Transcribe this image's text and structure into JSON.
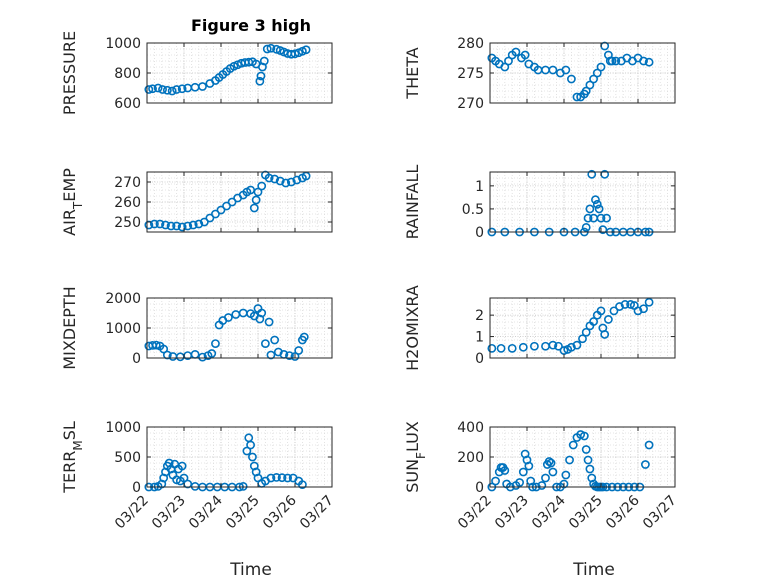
{
  "figure": {
    "title": "Figure 3 high",
    "x_tick_labels": [
      "03/22",
      "03/23",
      "03/24",
      "03/25",
      "03/26",
      "03/27"
    ],
    "xlabel": "Time"
  },
  "colors": {
    "marker": "#0072BD",
    "axes": "#262626",
    "grid": "#dcdcdc",
    "background": "#ffffff"
  },
  "chart_data": [
    {
      "type": "scatter",
      "ylabel": "PRESSURE",
      "title": "Figure 3 high",
      "ylim": [
        600,
        1000
      ],
      "yticks": [
        600,
        800,
        1000
      ],
      "xlim": [
        0,
        5
      ],
      "grid": "on",
      "marker": "open-circle",
      "x": [
        0.05,
        0.15,
        0.3,
        0.42,
        0.55,
        0.68,
        0.8,
        0.95,
        1.1,
        1.3,
        1.5,
        1.7,
        1.85,
        1.95,
        2.05,
        2.15,
        2.25,
        2.35,
        2.45,
        2.55,
        2.65,
        2.75,
        2.85,
        2.95,
        3.05,
        3.08,
        3.12,
        3.17,
        3.25,
        3.35,
        3.5,
        3.6,
        3.7,
        3.8,
        3.9,
        4.0,
        4.1,
        4.2,
        4.3
      ],
      "y": [
        690,
        695,
        700,
        690,
        685,
        680,
        690,
        695,
        700,
        705,
        710,
        730,
        750,
        770,
        790,
        810,
        830,
        845,
        855,
        865,
        870,
        872,
        875,
        860,
        745,
        780,
        840,
        880,
        960,
        965,
        958,
        950,
        940,
        930,
        925,
        928,
        935,
        945,
        955
      ]
    },
    {
      "type": "scatter",
      "ylabel": "THETA",
      "ylim": [
        270,
        280
      ],
      "yticks": [
        270,
        275,
        280
      ],
      "xlim": [
        0,
        5
      ],
      "grid": "on",
      "marker": "open-circle",
      "x": [
        0.05,
        0.15,
        0.25,
        0.4,
        0.5,
        0.6,
        0.7,
        0.85,
        0.95,
        1.05,
        1.2,
        1.3,
        1.5,
        1.7,
        1.9,
        2.05,
        2.2,
        2.35,
        2.45,
        2.55,
        2.6,
        2.7,
        2.8,
        2.9,
        3.0,
        3.1,
        3.2,
        3.25,
        3.3,
        3.4,
        3.55,
        3.7,
        3.85,
        4.0,
        4.15,
        4.3
      ],
      "y": [
        277.5,
        277,
        276.5,
        276,
        277,
        278,
        278.5,
        277.5,
        278,
        276.5,
        276,
        275.5,
        275.5,
        275.5,
        275,
        275.5,
        274,
        271,
        271,
        271.5,
        272,
        273,
        274,
        275,
        276,
        279.5,
        278,
        277,
        277,
        277,
        277,
        277.5,
        277,
        277.5,
        277,
        276.8
      ]
    },
    {
      "type": "scatter",
      "ylabel": "AIR_TEMP",
      "ylim": [
        245,
        275
      ],
      "yticks": [
        250,
        260,
        270
      ],
      "xlim": [
        0,
        5
      ],
      "grid": "on",
      "marker": "open-circle",
      "x": [
        0.05,
        0.2,
        0.35,
        0.5,
        0.65,
        0.8,
        0.95,
        1.1,
        1.25,
        1.4,
        1.55,
        1.7,
        1.85,
        2.0,
        2.15,
        2.3,
        2.45,
        2.6,
        2.7,
        2.8,
        2.9,
        2.95,
        3.0,
        3.1,
        3.2,
        3.3,
        3.45,
        3.6,
        3.75,
        3.9,
        4.05,
        4.2,
        4.3
      ],
      "y": [
        248.5,
        249,
        249,
        248.5,
        248,
        248,
        247.5,
        248,
        248.5,
        249,
        250,
        252,
        254,
        256,
        258,
        260,
        262,
        263.5,
        265,
        266,
        257,
        261,
        265,
        268,
        273.5,
        272,
        271.5,
        270.5,
        269.5,
        270,
        271,
        272,
        273
      ]
    },
    {
      "type": "scatter",
      "ylabel": "RAINFALL",
      "ylim": [
        0,
        1.3
      ],
      "yticks": [
        0,
        0.5,
        1
      ],
      "xlim": [
        0,
        5
      ],
      "grid": "on",
      "marker": "open-circle",
      "x": [
        0.05,
        0.4,
        0.8,
        1.2,
        1.6,
        2.0,
        2.3,
        2.55,
        2.6,
        2.65,
        2.7,
        2.75,
        2.8,
        2.85,
        2.9,
        2.95,
        3.0,
        3.05,
        3.1,
        3.15,
        3.25,
        3.4,
        3.6,
        3.8,
        4.0,
        4.2,
        4.3
      ],
      "y": [
        0,
        0,
        0,
        0,
        0,
        0,
        0,
        0,
        0.1,
        0.3,
        0.5,
        1.25,
        0.3,
        0.7,
        0.6,
        0.5,
        0.3,
        0.05,
        1.25,
        0.3,
        0,
        0,
        0,
        0,
        0,
        0,
        0
      ]
    },
    {
      "type": "scatter",
      "ylabel": "MIXDEPTH",
      "ylim": [
        0,
        2000
      ],
      "yticks": [
        0,
        1000,
        2000
      ],
      "xlim": [
        0,
        5
      ],
      "grid": "on",
      "marker": "open-circle",
      "x": [
        0.05,
        0.15,
        0.25,
        0.35,
        0.45,
        0.55,
        0.7,
        0.9,
        1.1,
        1.3,
        1.5,
        1.65,
        1.75,
        1.85,
        1.95,
        2.05,
        2.2,
        2.4,
        2.6,
        2.8,
        2.9,
        3.0,
        3.05,
        3.1,
        3.2,
        3.3,
        3.35,
        3.45,
        3.55,
        3.7,
        3.85,
        4.0,
        4.1,
        4.2,
        4.25
      ],
      "y": [
        400,
        420,
        430,
        400,
        300,
        100,
        50,
        40,
        80,
        120,
        30,
        80,
        150,
        480,
        1100,
        1250,
        1350,
        1450,
        1500,
        1480,
        1400,
        1650,
        1300,
        1500,
        480,
        1200,
        100,
        600,
        200,
        120,
        80,
        50,
        250,
        600,
        700
      ]
    },
    {
      "type": "scatter",
      "ylabel": "H2OMIXRA",
      "ylim": [
        0,
        2.8
      ],
      "yticks": [
        0,
        1,
        2
      ],
      "xlim": [
        0,
        5
      ],
      "grid": "on",
      "marker": "open-circle",
      "x": [
        0.05,
        0.3,
        0.6,
        0.9,
        1.2,
        1.5,
        1.7,
        1.85,
        2.0,
        2.1,
        2.2,
        2.35,
        2.5,
        2.6,
        2.7,
        2.8,
        2.9,
        3.0,
        3.05,
        3.1,
        3.2,
        3.35,
        3.5,
        3.65,
        3.8,
        3.9,
        4.0,
        4.15,
        4.3
      ],
      "y": [
        0.45,
        0.45,
        0.45,
        0.5,
        0.55,
        0.55,
        0.6,
        0.55,
        0.35,
        0.4,
        0.5,
        0.6,
        0.9,
        1.2,
        1.5,
        1.7,
        2.0,
        2.2,
        1.4,
        1.1,
        1.8,
        2.2,
        2.4,
        2.5,
        2.5,
        2.45,
        2.2,
        2.3,
        2.6
      ]
    },
    {
      "type": "scatter",
      "ylabel": "TERR_MSL",
      "ylim": [
        0,
        1000
      ],
      "yticks": [
        0,
        500,
        1000
      ],
      "xlim": [
        0,
        5
      ],
      "grid": "on",
      "marker": "open-circle",
      "x": [
        0.05,
        0.2,
        0.3,
        0.4,
        0.45,
        0.5,
        0.55,
        0.6,
        0.65,
        0.7,
        0.75,
        0.8,
        0.85,
        0.9,
        0.95,
        1.0,
        1.1,
        1.3,
        1.5,
        1.7,
        1.9,
        2.1,
        2.3,
        2.5,
        2.6,
        2.7,
        2.75,
        2.8,
        2.85,
        2.9,
        2.95,
        3.0,
        3.1,
        3.2,
        3.35,
        3.5,
        3.65,
        3.8,
        3.95,
        4.1,
        4.2
      ],
      "y": [
        0,
        0,
        10,
        50,
        150,
        250,
        350,
        400,
        300,
        200,
        380,
        120,
        300,
        100,
        350,
        150,
        50,
        10,
        0,
        0,
        0,
        0,
        0,
        0,
        10,
        600,
        820,
        700,
        500,
        350,
        250,
        150,
        60,
        100,
        150,
        160,
        155,
        150,
        150,
        100,
        40
      ]
    },
    {
      "type": "scatter",
      "ylabel": "SUN_FLUX",
      "ylim": [
        0,
        400
      ],
      "yticks": [
        0,
        200,
        400
      ],
      "xlim": [
        0,
        5
      ],
      "grid": "on",
      "marker": "open-circle",
      "x": [
        0.05,
        0.15,
        0.25,
        0.3,
        0.35,
        0.4,
        0.45,
        0.55,
        0.7,
        0.8,
        0.9,
        0.95,
        1.0,
        1.05,
        1.1,
        1.15,
        1.25,
        1.4,
        1.5,
        1.55,
        1.6,
        1.65,
        1.7,
        1.8,
        1.9,
        2.0,
        2.05,
        2.15,
        2.25,
        2.35,
        2.45,
        2.55,
        2.6,
        2.65,
        2.7,
        2.75,
        2.8,
        2.85,
        2.9,
        2.95,
        3.0,
        3.05,
        3.15,
        3.3,
        3.45,
        3.6,
        3.75,
        3.9,
        4.05,
        4.2,
        4.3
      ],
      "y": [
        0,
        40,
        100,
        130,
        130,
        110,
        20,
        0,
        10,
        30,
        100,
        220,
        180,
        140,
        40,
        0,
        0,
        10,
        60,
        150,
        170,
        160,
        100,
        0,
        0,
        20,
        80,
        180,
        280,
        330,
        350,
        340,
        250,
        180,
        120,
        60,
        20,
        5,
        0,
        0,
        0,
        0,
        0,
        0,
        0,
        0,
        0,
        0,
        0,
        150,
        280
      ]
    }
  ]
}
